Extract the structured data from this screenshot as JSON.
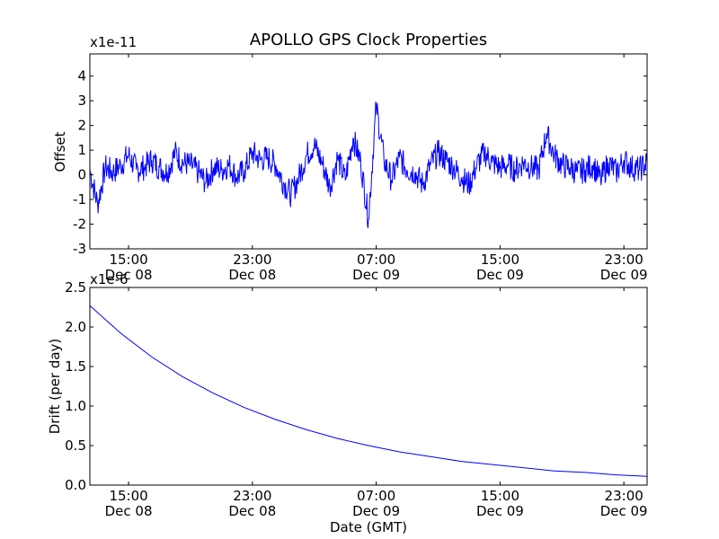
{
  "chart_data": [
    {
      "type": "line",
      "title": "APOLLO GPS Clock Properties",
      "ylabel": "Offset",
      "xlabel": "",
      "offset_text": "x1e-11",
      "y_multiplier": 1e-11,
      "ylim": [
        -3,
        4.9
      ],
      "yticks": [
        -3,
        -2,
        -1,
        0,
        1,
        2,
        3,
        4
      ],
      "xlim": [
        "2008-12-08T12:30",
        "2008-12-10T00:30"
      ],
      "xticks": [
        {
          "time": "2008-12-08T15:00",
          "line1": "15:00",
          "line2": "Dec 08"
        },
        {
          "time": "2008-12-08T23:00",
          "line1": "23:00",
          "line2": "Dec 08"
        },
        {
          "time": "2008-12-09T07:00",
          "line1": "07:00",
          "line2": "Dec 09"
        },
        {
          "time": "2008-12-09T15:00",
          "line1": "15:00",
          "line2": "Dec 09"
        },
        {
          "time": "2008-12-09T23:00",
          "line1": "23:00",
          "line2": "Dec 09"
        }
      ],
      "color": "#0000ff",
      "grid": false,
      "series": [
        {
          "x": [
            "2008-12-08T12:30",
            "2008-12-08T13:00",
            "2008-12-08T13:30",
            "2008-12-08T14:00",
            "2008-12-08T14:30",
            "2008-12-08T15:00",
            "2008-12-08T15:30",
            "2008-12-08T16:00",
            "2008-12-08T16:30",
            "2008-12-08T17:00",
            "2008-12-08T17:30",
            "2008-12-08T18:00",
            "2008-12-08T18:30",
            "2008-12-08T19:00",
            "2008-12-08T19:30",
            "2008-12-08T20:00",
            "2008-12-08T20:30",
            "2008-12-08T21:00",
            "2008-12-08T21:30",
            "2008-12-08T22:00",
            "2008-12-08T22:30",
            "2008-12-08T23:00",
            "2008-12-08T23:30",
            "2008-12-09T00:00",
            "2008-12-09T00:30",
            "2008-12-09T01:00",
            "2008-12-09T01:30",
            "2008-12-09T02:00",
            "2008-12-09T02:30",
            "2008-12-09T03:00",
            "2008-12-09T03:30",
            "2008-12-09T04:00",
            "2008-12-09T04:30",
            "2008-12-09T05:00",
            "2008-12-09T05:30",
            "2008-12-09T06:00",
            "2008-12-09T06:30",
            "2008-12-09T07:00",
            "2008-12-09T07:30",
            "2008-12-09T08:00",
            "2008-12-09T08:30",
            "2008-12-09T09:00",
            "2008-12-09T09:30",
            "2008-12-09T10:00",
            "2008-12-09T10:30",
            "2008-12-09T11:00",
            "2008-12-09T11:30",
            "2008-12-09T12:00",
            "2008-12-09T12:30",
            "2008-12-09T13:00",
            "2008-12-09T13:30",
            "2008-12-09T14:00",
            "2008-12-09T14:30",
            "2008-12-09T15:00",
            "2008-12-09T15:30",
            "2008-12-09T16:00",
            "2008-12-09T16:30",
            "2008-12-09T17:00",
            "2008-12-09T17:30",
            "2008-12-09T18:00",
            "2008-12-09T18:30",
            "2008-12-09T19:00",
            "2008-12-09T19:30",
            "2008-12-09T20:00",
            "2008-12-09T20:30",
            "2008-12-09T21:00",
            "2008-12-09T21:30",
            "2008-12-09T22:00",
            "2008-12-09T22:30",
            "2008-12-09T23:00",
            "2008-12-09T23:30",
            "2008-12-10T00:00",
            "2008-12-10T00:30"
          ],
          "values": [
            0.2,
            -1.2,
            0.3,
            0.1,
            0.4,
            0.8,
            0.2,
            0.3,
            0.6,
            0.3,
            0.1,
            0.9,
            0.5,
            0.4,
            0.1,
            -0.3,
            0.3,
            0.2,
            0.4,
            -0.1,
            0.2,
            0.9,
            0.6,
            0.7,
            0.4,
            -0.3,
            -0.8,
            -0.1,
            0.8,
            1.2,
            0.5,
            -0.5,
            0.7,
            -0.2,
            1.5,
            0.5,
            -1.8,
            2.8,
            0.6,
            -0.2,
            0.7,
            0.2,
            0.1,
            -0.4,
            0.4,
            0.9,
            0.6,
            0.3,
            -0.1,
            -0.4,
            0.4,
            0.9,
            0.5,
            0.3,
            0.4,
            0.2,
            0.5,
            0.3,
            0.2,
            1.7,
            0.8,
            0.4,
            0.3,
            0.1,
            0.2,
            0.4,
            -0.2,
            0.5,
            0.1,
            0.6,
            0.3,
            0.2,
            0.5
          ]
        }
      ]
    },
    {
      "type": "line",
      "title": "",
      "ylabel": "Drift (per day)",
      "xlabel": "Date (GMT)",
      "offset_text": "x1e-6",
      "y_multiplier": 1e-06,
      "ylim": [
        0.0,
        2.5
      ],
      "yticks": [
        "0.0",
        "0.5",
        "1.0",
        "1.5",
        "2.0",
        "2.5"
      ],
      "xlim": [
        "2008-12-08T12:30",
        "2008-12-10T00:30"
      ],
      "xticks": [
        {
          "time": "2008-12-08T15:00",
          "line1": "15:00",
          "line2": "Dec 08"
        },
        {
          "time": "2008-12-08T23:00",
          "line1": "23:00",
          "line2": "Dec 08"
        },
        {
          "time": "2008-12-09T07:00",
          "line1": "07:00",
          "line2": "Dec 09"
        },
        {
          "time": "2008-12-09T15:00",
          "line1": "15:00",
          "line2": "Dec 09"
        },
        {
          "time": "2008-12-09T23:00",
          "line1": "23:00",
          "line2": "Dec 09"
        }
      ],
      "color": "#0000ff",
      "grid": false,
      "series": [
        {
          "x": [
            "2008-12-08T12:30",
            "2008-12-08T14:30",
            "2008-12-08T16:30",
            "2008-12-08T18:30",
            "2008-12-08T20:30",
            "2008-12-08T22:30",
            "2008-12-09T00:30",
            "2008-12-09T02:30",
            "2008-12-09T04:30",
            "2008-12-09T06:30",
            "2008-12-09T08:30",
            "2008-12-09T10:30",
            "2008-12-09T12:30",
            "2008-12-09T14:30",
            "2008-12-09T16:30",
            "2008-12-09T18:30",
            "2008-12-09T20:30",
            "2008-12-09T22:30",
            "2008-12-10T00:30"
          ],
          "values": [
            2.27,
            1.92,
            1.62,
            1.37,
            1.16,
            0.98,
            0.83,
            0.7,
            0.59,
            0.5,
            0.42,
            0.36,
            0.3,
            0.26,
            0.22,
            0.18,
            0.16,
            0.13,
            0.11
          ]
        }
      ]
    }
  ]
}
